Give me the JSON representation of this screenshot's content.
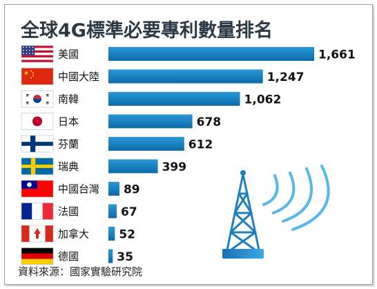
{
  "chart_data": {
    "type": "bar",
    "orientation": "horizontal",
    "title": "全球4G標準必要專利數量排名",
    "categories": [
      "美國",
      "中國大陸",
      "南韓",
      "日本",
      "芬蘭",
      "瑞典",
      "中國台灣",
      "法國",
      "加拿大",
      "德國"
    ],
    "values": [
      1661,
      1247,
      1062,
      678,
      612,
      399,
      89,
      67,
      52,
      35
    ],
    "value_labels": [
      "1,661",
      "1,247",
      "1,062",
      "678",
      "612",
      "399",
      "89",
      "67",
      "52",
      "35"
    ],
    "flags": [
      "us-flag-icon",
      "china-flag-icon",
      "korea-flag-icon",
      "japan-flag-icon",
      "finland-flag-icon",
      "sweden-flag-icon",
      "taiwan-flag-icon",
      "france-flag-icon",
      "canada-flag-icon",
      "germany-flag-icon"
    ],
    "bar_color": "#1780c0",
    "grid": false,
    "legend": "none"
  },
  "source": "資料來源：國家實驗研究院",
  "decoration": "radio-tower-icon"
}
